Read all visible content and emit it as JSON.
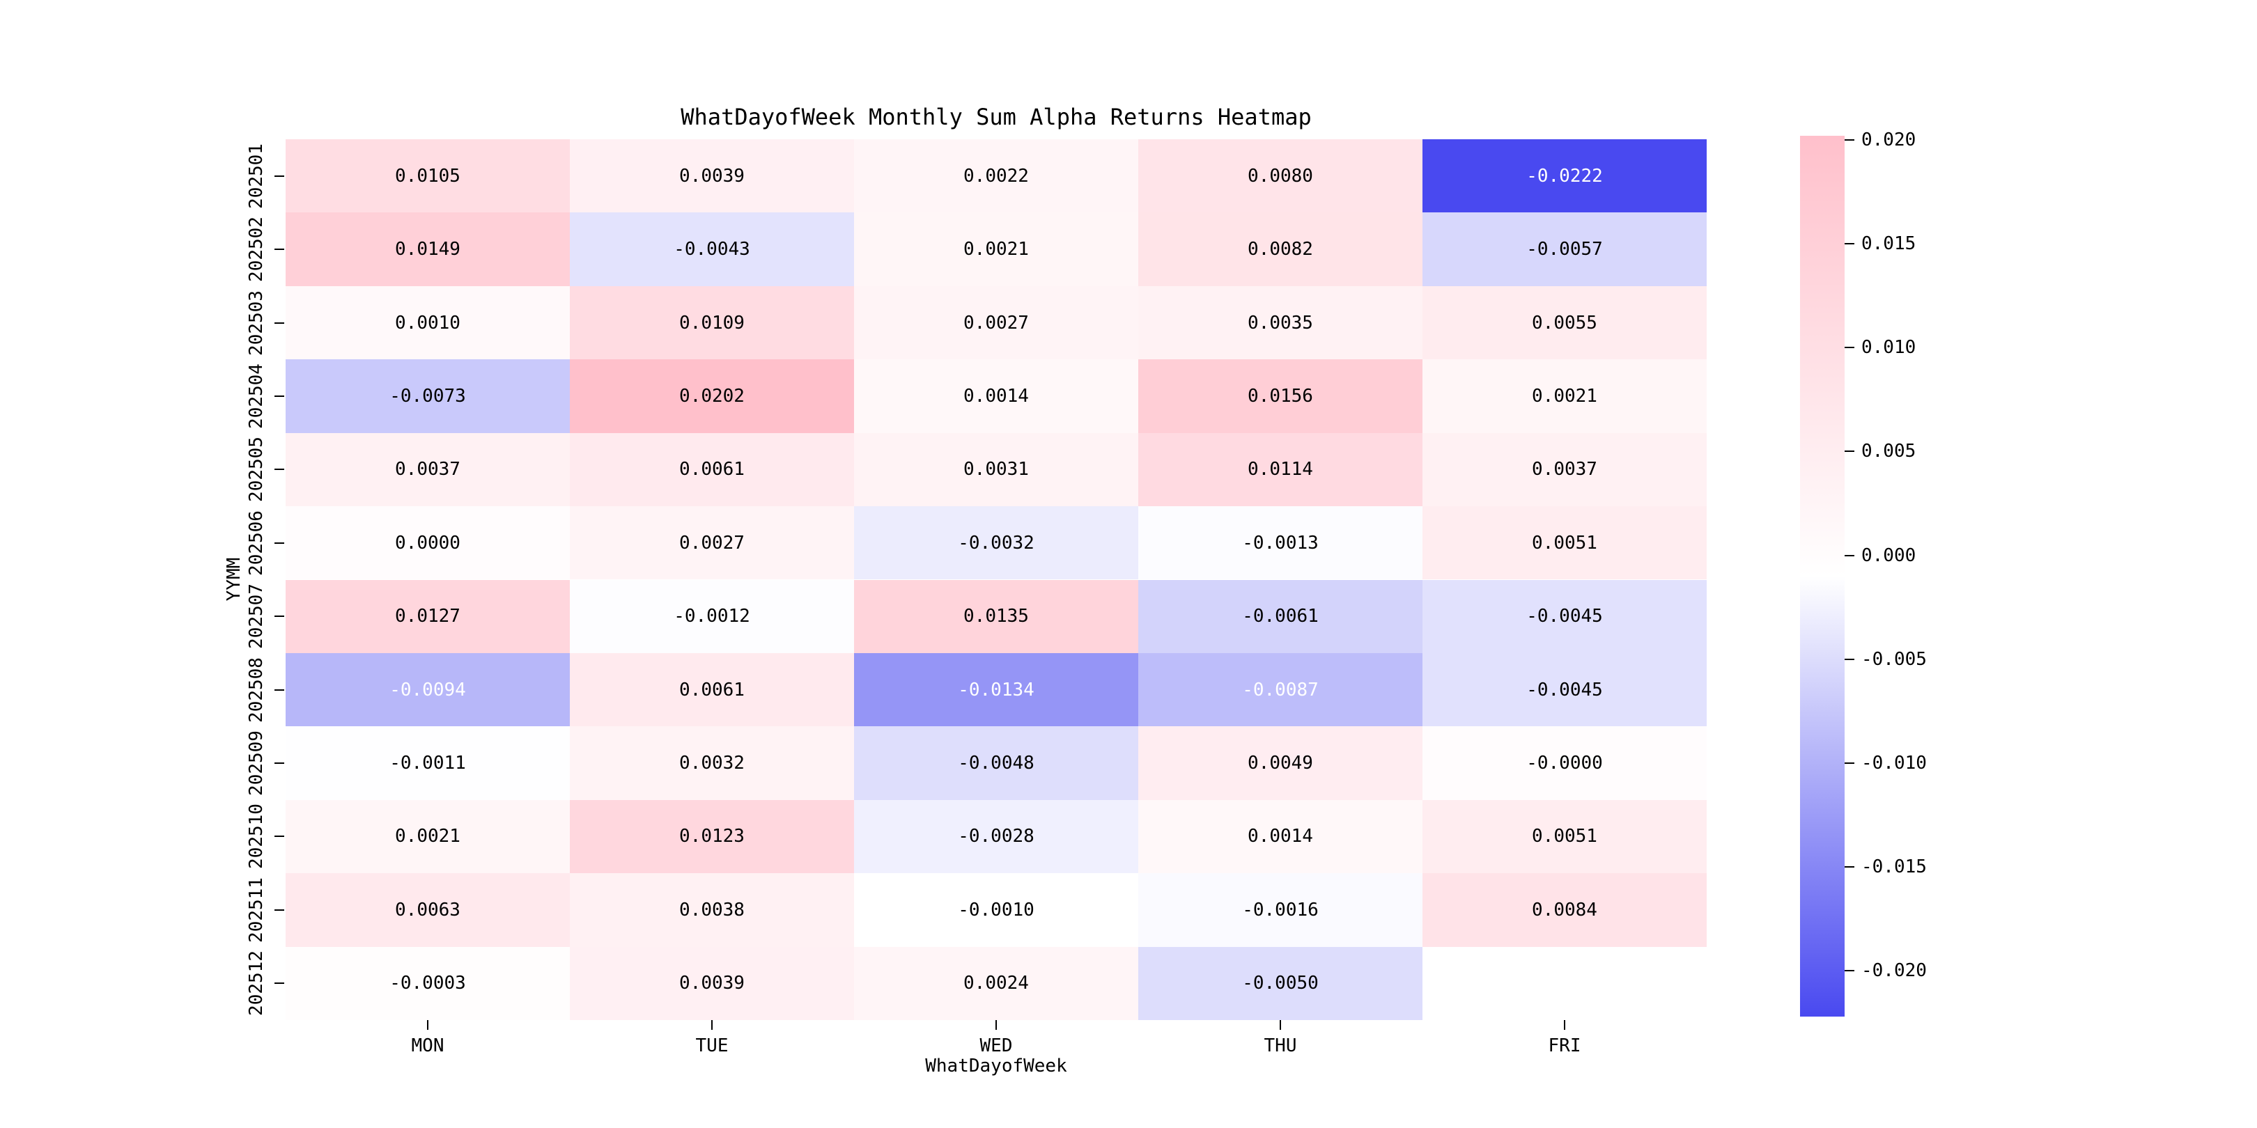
{
  "chart_data": {
    "type": "heatmap",
    "title": "WhatDayofWeek Monthly Sum Alpha Returns Heatmap",
    "xlabel": "WhatDayofWeek",
    "ylabel": "YYMM",
    "columns": [
      "MON",
      "TUE",
      "WED",
      "THU",
      "FRI"
    ],
    "rows": [
      "202501",
      "202502",
      "202503",
      "202504",
      "202505",
      "202506",
      "202507",
      "202508",
      "202509",
      "202510",
      "202511",
      "202512"
    ],
    "values": [
      [
        "0.0105",
        "0.0039",
        "0.0022",
        "0.0080",
        "-0.0222"
      ],
      [
        "0.0149",
        "-0.0043",
        "0.0021",
        "0.0082",
        "-0.0057"
      ],
      [
        "0.0010",
        "0.0109",
        "0.0027",
        "0.0035",
        "0.0055"
      ],
      [
        "-0.0073",
        "0.0202",
        "0.0014",
        "0.0156",
        "0.0021"
      ],
      [
        "0.0037",
        "0.0061",
        "0.0031",
        "0.0114",
        "0.0037"
      ],
      [
        "0.0000",
        "0.0027",
        "-0.0032",
        "-0.0013",
        "0.0051"
      ],
      [
        "0.0127",
        "-0.0012",
        "0.0135",
        "-0.0061",
        "-0.0045"
      ],
      [
        "-0.0094",
        "0.0061",
        "-0.0134",
        "-0.0087",
        "-0.0045"
      ],
      [
        "-0.0011",
        "0.0032",
        "-0.0048",
        "0.0049",
        "-0.0000"
      ],
      [
        "0.0021",
        "0.0123",
        "-0.0028",
        "0.0014",
        "0.0051"
      ],
      [
        "0.0063",
        "0.0038",
        "-0.0010",
        "-0.0016",
        "0.0084"
      ],
      [
        "-0.0003",
        "0.0039",
        "0.0024",
        "-0.0050",
        null
      ]
    ],
    "colorbar": {
      "tick_labels": [
        "0.020",
        "0.015",
        "0.010",
        "0.005",
        "0.000",
        "-0.005",
        "-0.010",
        "-0.015",
        "-0.020"
      ],
      "tick_values": [
        0.02,
        0.015,
        0.01,
        0.005,
        0.0,
        -0.005,
        -0.01,
        -0.015,
        -0.02
      ],
      "vmin": -0.0222,
      "vmax": 0.0202,
      "color_negative_end": "#4949F0",
      "color_center": "#FFFFFF",
      "color_positive_end": "#FFC0CB"
    },
    "annotation_text_color_dark": "#000000",
    "annotation_text_color_light": "#FFFFFF",
    "legend_position": "right",
    "grid": false
  }
}
